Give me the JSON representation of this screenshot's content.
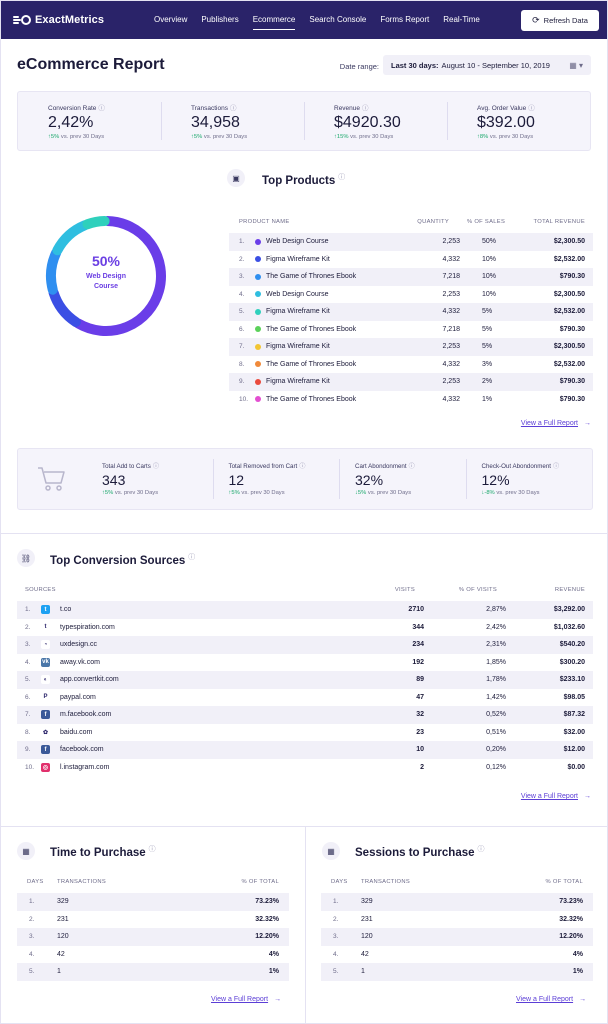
{
  "nav": {
    "logo_text": "ExactMetrics",
    "items": [
      "Overview",
      "Publishers",
      "Ecommerce",
      "Search Console",
      "Forms Report",
      "Real-Time"
    ],
    "active_index": 2,
    "refresh_label": "Refresh Data",
    "refresh_icon": "refresh-icon"
  },
  "header": {
    "title": "eCommerce Report",
    "date_label": "Date range:",
    "date_range_bold": "Last 30 days:",
    "date_range_value": "August 10 - September 10, 2019",
    "calendar_icon": "calendar-icon"
  },
  "kpis": [
    {
      "label": "Conversion Rate",
      "value": "2,42%",
      "change": "5%",
      "suffix": "vs. prev 30 Days"
    },
    {
      "label": "Transactions",
      "value": "34,958",
      "change": "5%",
      "suffix": "vs. prev 30 Days"
    },
    {
      "label": "Revenue",
      "value": "$4920.30",
      "change": "15%",
      "suffix": "vs. prev 30 Days"
    },
    {
      "label": "Avg. Order Value",
      "value": "$392.00",
      "change": "8%",
      "suffix": "vs. prev 30 Days"
    }
  ],
  "top_products": {
    "title": "Top Products",
    "donut_percent": "50%",
    "donut_label": "Web Design Course",
    "donut_segments": [
      {
        "color": "#6a3de8",
        "value": 50
      },
      {
        "color": "#3b4fe4",
        "value": 10
      },
      {
        "color": "#2f8ff0",
        "value": 10
      },
      {
        "color": "#2fbee0",
        "value": 10
      },
      {
        "color": "#2fd0bc",
        "value": 5
      }
    ],
    "columns": [
      "PRODUCT NAME",
      "QUANTITY",
      "% OF SALES",
      "TOTAL REVENUE"
    ],
    "rows": [
      {
        "num": "1.",
        "color": "#6a3de8",
        "name": "Web Design Course",
        "qty": "2,253",
        "pct": "50%",
        "rev": "$2,300.50"
      },
      {
        "num": "2.",
        "color": "#3b4fe4",
        "name": "Figma Wireframe Kit",
        "qty": "4,332",
        "pct": "10%",
        "rev": "$2,532.00"
      },
      {
        "num": "3.",
        "color": "#2f8ff0",
        "name": "The Game of Thrones Ebook",
        "qty": "7,218",
        "pct": "10%",
        "rev": "$790.30"
      },
      {
        "num": "4.",
        "color": "#2fbee0",
        "name": "Web Design Course",
        "qty": "2,253",
        "pct": "10%",
        "rev": "$2,300.50"
      },
      {
        "num": "5.",
        "color": "#2fd0bc",
        "name": "Figma Wireframe Kit",
        "qty": "4,332",
        "pct": "5%",
        "rev": "$2,532.00"
      },
      {
        "num": "6.",
        "color": "#5bd15a",
        "name": "The Game of Thrones Ebook",
        "qty": "7,218",
        "pct": "5%",
        "rev": "$790.30"
      },
      {
        "num": "7.",
        "color": "#f2c533",
        "name": "Figma Wireframe Kit",
        "qty": "2,253",
        "pct": "5%",
        "rev": "$2,300.50"
      },
      {
        "num": "8.",
        "color": "#f08a3a",
        "name": "The Game of Thrones Ebook",
        "qty": "4,332",
        "pct": "3%",
        "rev": "$2,532.00"
      },
      {
        "num": "9.",
        "color": "#ea4a3d",
        "name": "Figma Wireframe Kit",
        "qty": "2,253",
        "pct": "2%",
        "rev": "$790.30"
      },
      {
        "num": "10.",
        "color": "#e34fd1",
        "name": "The Game of Thrones Ebook",
        "qty": "4,332",
        "pct": "1%",
        "rev": "$790.30"
      }
    ],
    "full_report": "View a Full Report"
  },
  "cart": {
    "icon": "shopping-cart-icon",
    "kpis": [
      {
        "label": "Total Add to Carts",
        "value": "343",
        "change": "5%",
        "dir": "up",
        "suffix": "vs. prev 30 Days"
      },
      {
        "label": "Total Removed from Cart",
        "value": "12",
        "change": "5%",
        "dir": "up",
        "suffix": "vs. prev 30 Days"
      },
      {
        "label": "Cart Abondonment",
        "value": "32%",
        "change": "5%",
        "dir": "down",
        "suffix": "vs. prev 30 Days"
      },
      {
        "label": "Check-Out Abondonment",
        "value": "12%",
        "change": "-8%",
        "dir": "down",
        "suffix": "vs. prev 30 Days"
      }
    ]
  },
  "sources": {
    "title": "Top Conversion Sources",
    "columns": [
      "SOURCES",
      "VISITS",
      "% OF VISITS",
      "REVENUE"
    ],
    "rows": [
      {
        "num": "1.",
        "icon": "twitter-icon",
        "bg": "#1da1f2",
        "glyph": "t",
        "name": "t.co",
        "visits": "2710",
        "pct": "2,87%",
        "rev": "$3,292.00"
      },
      {
        "num": "2.",
        "icon": "tumblr-icon",
        "bg": "#ffffff",
        "glyph": "t",
        "name": "typespiration.com",
        "visits": "344",
        "pct": "2,42%",
        "rev": "$1,032.60"
      },
      {
        "num": "3.",
        "icon": "uxdesign-icon",
        "bg": "#ffffff",
        "glyph": "◔",
        "name": "uxdesign.cc",
        "visits": "234",
        "pct": "2,31%",
        "rev": "$540.20"
      },
      {
        "num": "4.",
        "icon": "vk-icon",
        "bg": "#4a76a8",
        "glyph": "vk",
        "name": "away.vk.com",
        "visits": "192",
        "pct": "1,85%",
        "rev": "$300.20"
      },
      {
        "num": "5.",
        "icon": "convertkit-icon",
        "bg": "#ffffff",
        "glyph": "◐",
        "name": "app.convertkit.com",
        "visits": "89",
        "pct": "1,78%",
        "rev": "$233.10"
      },
      {
        "num": "6.",
        "icon": "paypal-icon",
        "bg": "#ffffff",
        "glyph": "P",
        "name": "paypal.com",
        "visits": "47",
        "pct": "1,42%",
        "rev": "$98.05"
      },
      {
        "num": "7.",
        "icon": "facebook-icon",
        "bg": "#3b5998",
        "glyph": "f",
        "name": "m.facebook.com",
        "visits": "32",
        "pct": "0,52%",
        "rev": "$87.32"
      },
      {
        "num": "8.",
        "icon": "baidu-icon",
        "bg": "#ffffff",
        "glyph": "✿",
        "name": "baidu.com",
        "visits": "23",
        "pct": "0,51%",
        "rev": "$32.00"
      },
      {
        "num": "9.",
        "icon": "facebook-icon",
        "bg": "#3b5998",
        "glyph": "f",
        "name": "facebook.com",
        "visits": "10",
        "pct": "0,20%",
        "rev": "$12.00"
      },
      {
        "num": "10.",
        "icon": "instagram-icon",
        "bg": "#e1306c",
        "glyph": "◎",
        "name": "l.instagram.com",
        "visits": "2",
        "pct": "0,12%",
        "rev": "$0.00"
      }
    ],
    "full_report": "View a Full Report"
  },
  "time_to_purchase": {
    "title": "Time to Purchase",
    "columns": [
      "DAYS",
      "TRANSACTIONS",
      "% OF TOTAL"
    ],
    "rows": [
      {
        "day": "1.",
        "tx": "329",
        "pct": "73.23%"
      },
      {
        "day": "2.",
        "tx": "231",
        "pct": "32.32%"
      },
      {
        "day": "3.",
        "tx": "120",
        "pct": "12.20%"
      },
      {
        "day": "4.",
        "tx": "42",
        "pct": "4%"
      },
      {
        "day": "5.",
        "tx": "1",
        "pct": "1%"
      }
    ],
    "full_report": "View a Full Report"
  },
  "sessions_to_purchase": {
    "title": "Sessions to Purchase",
    "columns": [
      "DAYS",
      "TRANSACTIONS",
      "% OF TOTAL"
    ],
    "rows": [
      {
        "day": "1.",
        "tx": "329",
        "pct": "73.23%"
      },
      {
        "day": "2.",
        "tx": "231",
        "pct": "32.32%"
      },
      {
        "day": "3.",
        "tx": "120",
        "pct": "12.20%"
      },
      {
        "day": "4.",
        "tx": "42",
        "pct": "4%"
      },
      {
        "day": "5.",
        "tx": "1",
        "pct": "1%"
      }
    ],
    "full_report": "View a Full Report"
  },
  "colors": {
    "nav_bg": "#2a2369",
    "accent": "#5b3ed6",
    "positive": "#1aa86b"
  }
}
